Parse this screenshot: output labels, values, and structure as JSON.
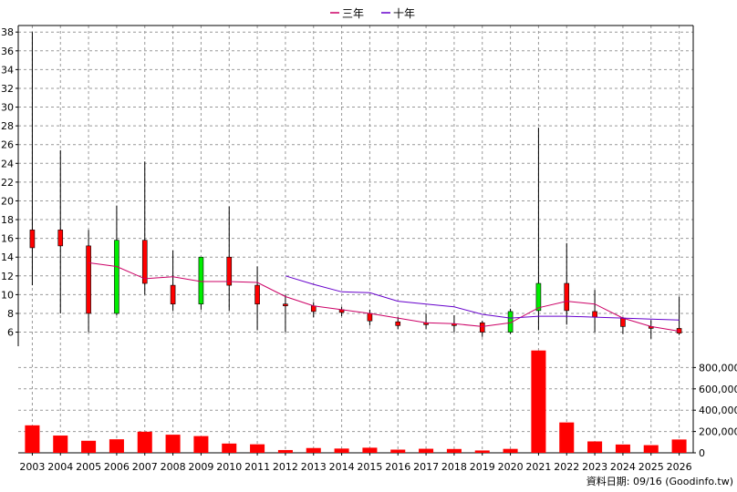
{
  "chart_data": {
    "type": "candlestick",
    "legend": {
      "placement": "top-center",
      "items": [
        {
          "label": "三年",
          "color": "#cc0066"
        },
        {
          "label": "十年",
          "color": "#6600cc"
        }
      ]
    },
    "years": [
      "2003",
      "2004",
      "2005",
      "2006",
      "2007",
      "2008",
      "2009",
      "2010",
      "2011",
      "2012",
      "2013",
      "2014",
      "2015",
      "2016",
      "2017",
      "2018",
      "2019",
      "2020",
      "2021",
      "2022",
      "2023",
      "2024",
      "2025",
      "2026"
    ],
    "price_axis": {
      "min": 4.5,
      "max": 38.7,
      "ticks": [
        6,
        8,
        10,
        12,
        14,
        16,
        18,
        20,
        22,
        24,
        26,
        28,
        30,
        32,
        34,
        36,
        38
      ],
      "position": "left"
    },
    "volume_axis": {
      "min": 0,
      "max": 1000000,
      "ticks": [
        0,
        200000,
        400000,
        600000,
        800000
      ],
      "tick_labels": [
        "0",
        "200,000",
        "400,000",
        "600,000",
        "800,000"
      ],
      "position": "right"
    },
    "grid": true,
    "candles": [
      {
        "open": 15.0,
        "high": 38.0,
        "low": 11.0,
        "close": 16.9
      },
      {
        "open": 15.2,
        "high": 25.4,
        "low": 8.0,
        "close": 16.9
      },
      {
        "open": 8.0,
        "high": 16.9,
        "low": 6.0,
        "close": 15.2
      },
      {
        "open": 15.8,
        "high": 19.5,
        "low": 7.8,
        "close": 8.0
      },
      {
        "open": 11.2,
        "high": 24.2,
        "low": 10.0,
        "close": 15.8
      },
      {
        "open": 9.0,
        "high": 14.7,
        "low": 8.3,
        "close": 11.0
      },
      {
        "open": 14.0,
        "high": 14.0,
        "low": 8.4,
        "close": 9.0
      },
      {
        "open": 11.0,
        "high": 19.4,
        "low": 8.3,
        "close": 14.0
      },
      {
        "open": 9.0,
        "high": 13.0,
        "low": 6.2,
        "close": 11.0
      },
      {
        "open": 8.9,
        "high": 10.0,
        "low": 6.0,
        "close": 9.0
      },
      {
        "open": 8.2,
        "high": 9.2,
        "low": 7.6,
        "close": 8.8
      },
      {
        "open": 8.1,
        "high": 8.7,
        "low": 7.7,
        "close": 8.4
      },
      {
        "open": 7.2,
        "high": 8.4,
        "low": 6.7,
        "close": 8.0
      },
      {
        "open": 6.7,
        "high": 7.6,
        "low": 6.3,
        "close": 7.1
      },
      {
        "open": 6.8,
        "high": 8.0,
        "low": 6.3,
        "close": 7.0
      },
      {
        "open": 6.8,
        "high": 7.8,
        "low": 6.0,
        "close": 6.9
      },
      {
        "open": 6.0,
        "high": 7.2,
        "low": 5.5,
        "close": 7.0
      },
      {
        "open": 8.2,
        "high": 8.5,
        "low": 5.8,
        "close": 6.0
      },
      {
        "open": 11.2,
        "high": 27.8,
        "low": 6.2,
        "close": 8.3
      },
      {
        "open": 8.3,
        "high": 15.5,
        "low": 6.8,
        "close": 11.2
      },
      {
        "open": 7.6,
        "high": 10.5,
        "low": 6.0,
        "close": 8.2
      },
      {
        "open": 6.6,
        "high": 7.6,
        "low": 5.8,
        "close": 7.5
      },
      {
        "open": 6.6,
        "high": 7.3,
        "low": 5.3,
        "close": 6.6
      },
      {
        "open": 5.9,
        "high": 9.8,
        "low": 5.7,
        "close": 6.4
      }
    ],
    "series": [
      {
        "name": "三年",
        "color": "#cc0066",
        "values": [
          null,
          null,
          13.4,
          13.0,
          11.7,
          11.9,
          11.4,
          11.4,
          11.3,
          9.8,
          8.8,
          8.4,
          8.0,
          7.5,
          7.0,
          6.9,
          6.6,
          7.0,
          8.6,
          9.3,
          9.0,
          7.5,
          6.6,
          6.1
        ]
      },
      {
        "name": "十年",
        "color": "#6600cc",
        "values": [
          null,
          null,
          null,
          null,
          null,
          null,
          null,
          null,
          null,
          12.0,
          11.1,
          10.3,
          10.2,
          9.3,
          9.0,
          8.7,
          7.9,
          7.5,
          7.7,
          7.7,
          7.6,
          7.5,
          7.4,
          7.3
        ]
      }
    ],
    "volumes": [
      258000,
      162000,
      113000,
      127000,
      198000,
      170000,
      157000,
      87000,
      80000,
      26000,
      45000,
      40000,
      48000,
      30000,
      38000,
      36000,
      22000,
      37000,
      960000,
      285000,
      107000,
      78000,
      72000,
      125000
    ],
    "colors": {
      "up": "#ff0000",
      "down": "#00ee00",
      "wick": "#000000",
      "volume": "#ff0000",
      "grid": "#999999",
      "axis": "#000000"
    }
  },
  "source_note": "資料日期: 09/16  (Goodinfo.tw)"
}
